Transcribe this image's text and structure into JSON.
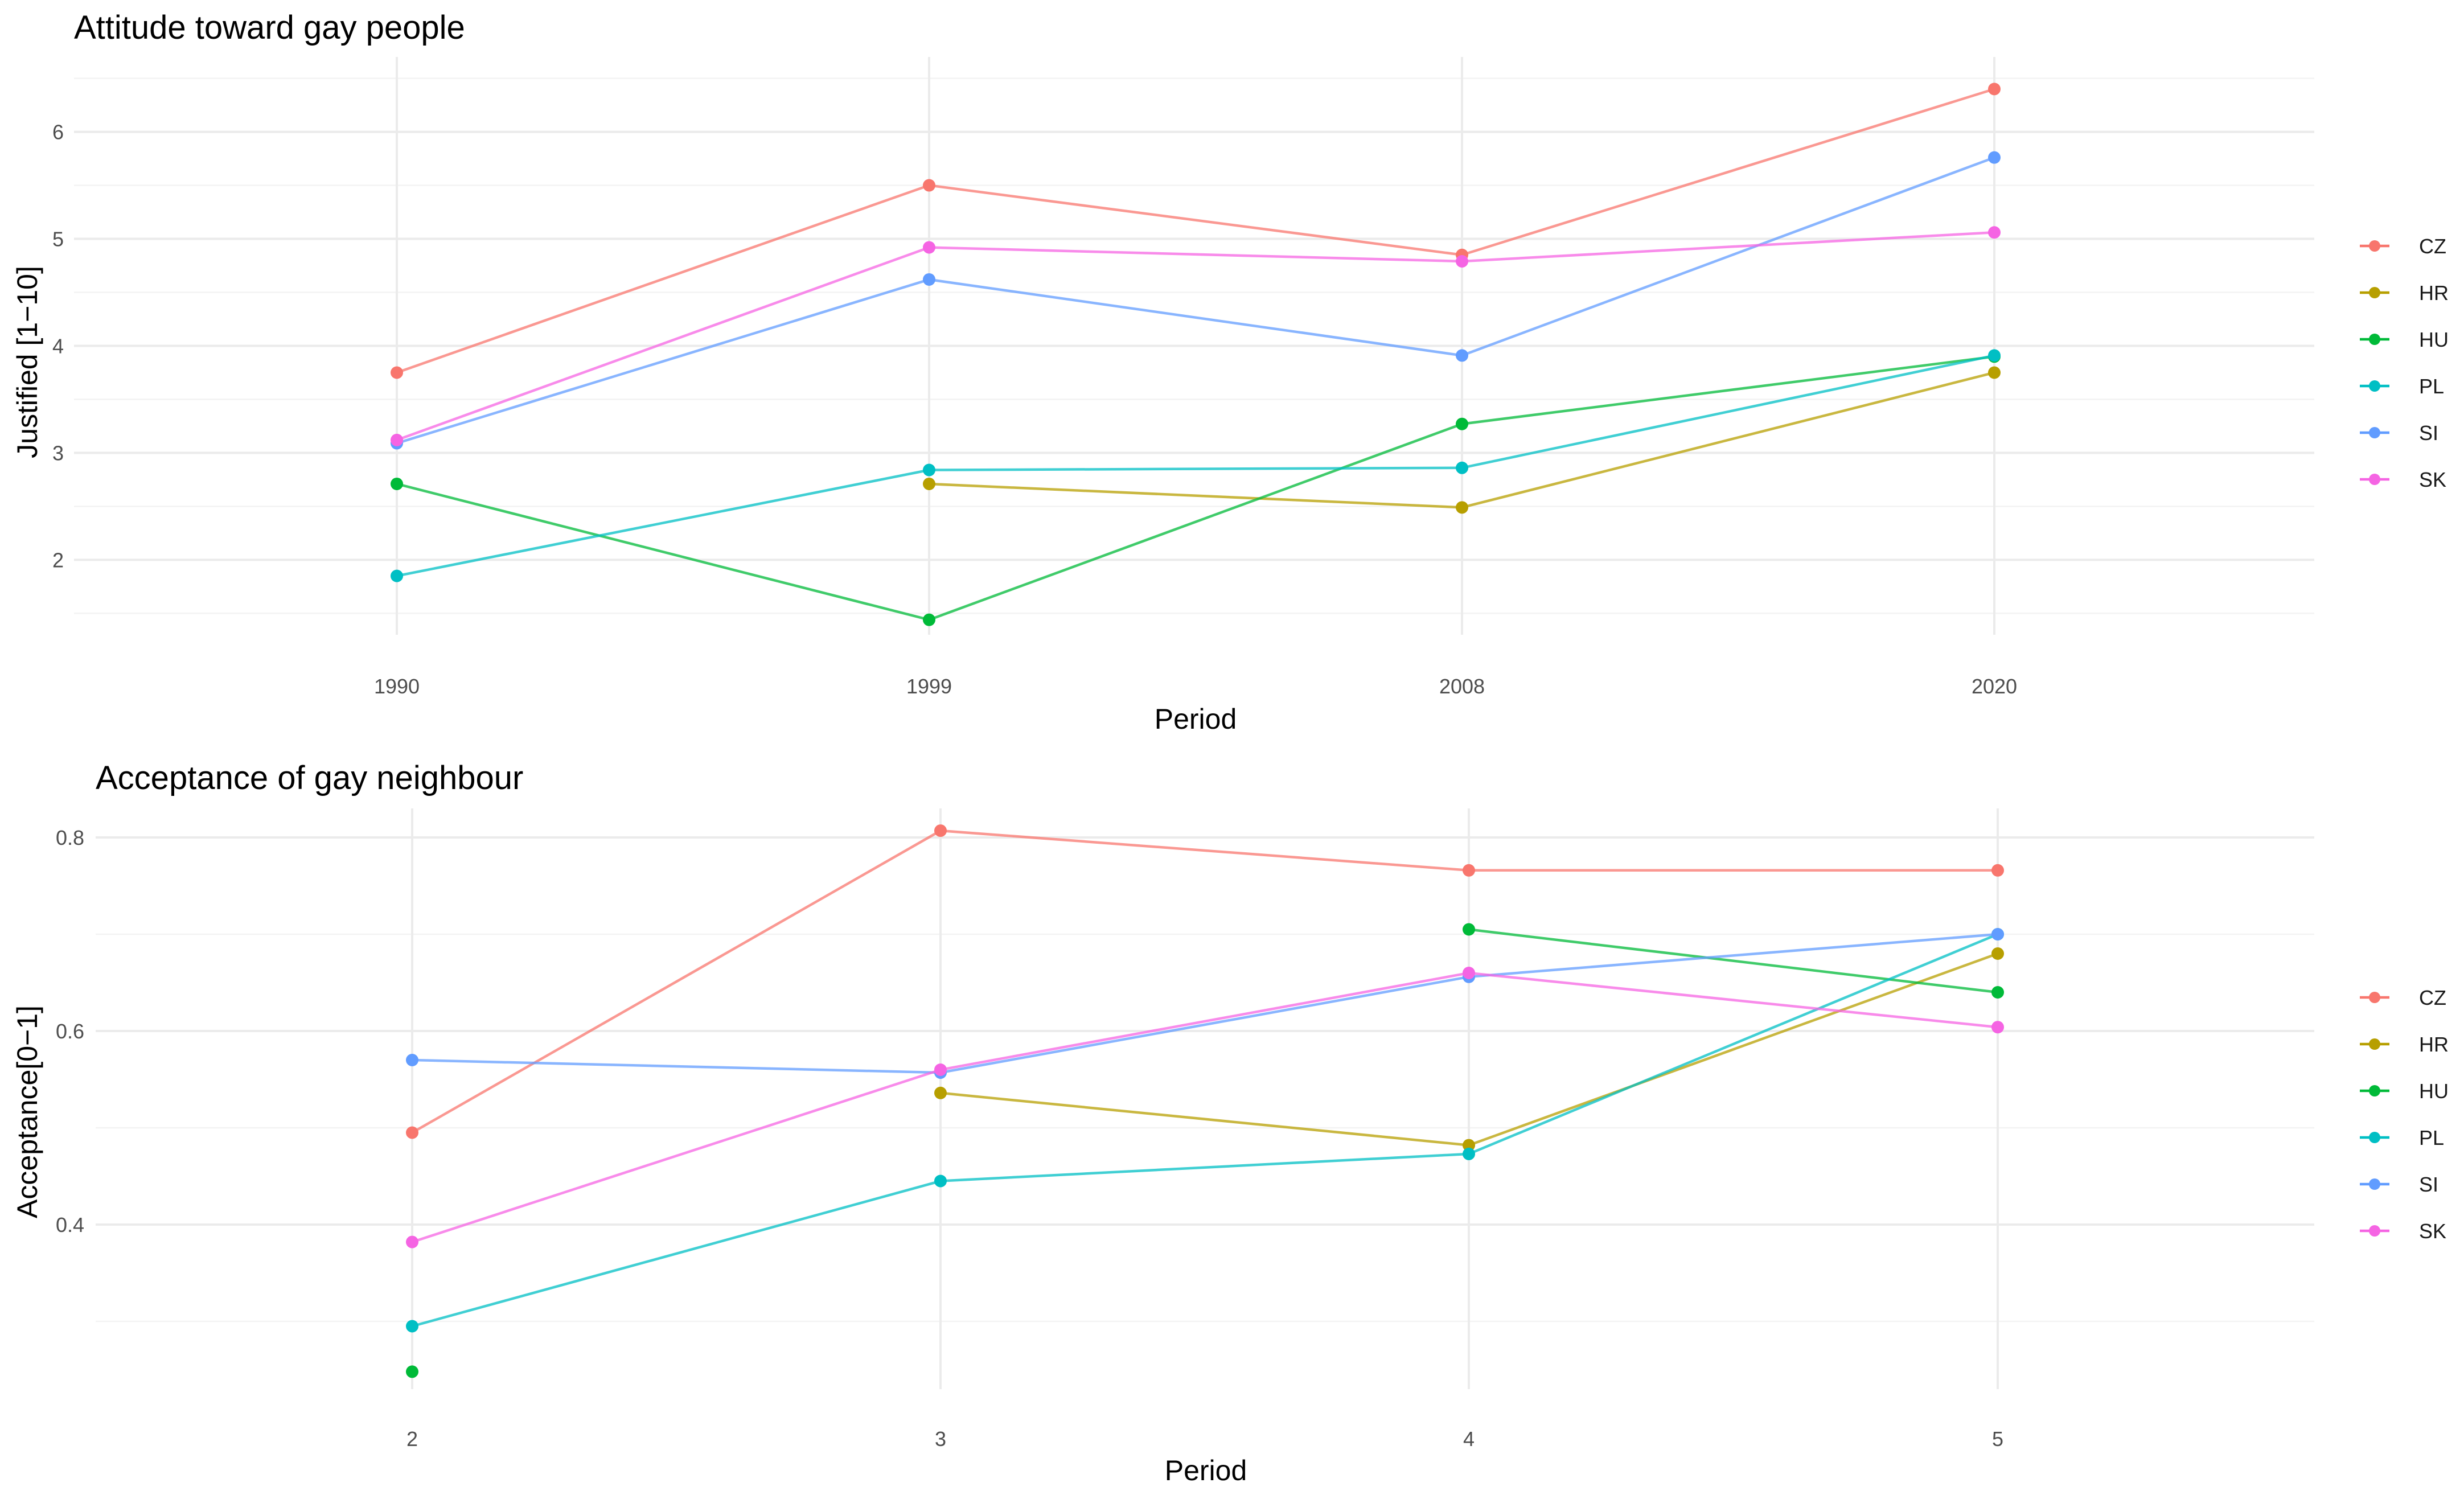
{
  "chart_data": [
    {
      "type": "line",
      "title": "Attitude toward gay people",
      "xlabel": "Period",
      "ylabel": "Justified [1−10]",
      "categories": [
        "1990",
        "1999",
        "2008",
        "2020"
      ],
      "yticks": [
        "2",
        "3",
        "4",
        "5",
        "6"
      ],
      "ylim": [
        1.3,
        6.7
      ],
      "legend_position": "right",
      "series": [
        {
          "name": "CZ",
          "color": "#F8766D",
          "values": [
            3.75,
            5.5,
            4.85,
            6.4
          ]
        },
        {
          "name": "HR",
          "color": "#B79F00",
          "values": [
            null,
            2.71,
            2.49,
            3.75
          ]
        },
        {
          "name": "HU",
          "color": "#00BA38",
          "values": [
            2.71,
            1.44,
            3.27,
            3.9
          ]
        },
        {
          "name": "PL",
          "color": "#00BFC4",
          "values": [
            1.85,
            2.84,
            2.86,
            3.91
          ]
        },
        {
          "name": "SI",
          "color": "#619CFF",
          "values": [
            3.09,
            4.62,
            3.91,
            5.76
          ]
        },
        {
          "name": "SK",
          "color": "#F564E3",
          "values": [
            3.12,
            4.92,
            4.79,
            5.06
          ]
        }
      ]
    },
    {
      "type": "line",
      "title": "Acceptance of gay neighbour",
      "xlabel": "Period",
      "ylabel": "Acceptance[0−1]",
      "categories": [
        "2",
        "3",
        "4",
        "5"
      ],
      "yticks": [
        "0.4",
        "0.6",
        "0.8"
      ],
      "ylim": [
        0.23,
        0.83
      ],
      "legend_position": "right",
      "series": [
        {
          "name": "CZ",
          "color": "#F8766D",
          "values": [
            0.495,
            0.807,
            0.766,
            0.766
          ]
        },
        {
          "name": "HR",
          "color": "#B79F00",
          "values": [
            null,
            0.536,
            0.482,
            0.68
          ]
        },
        {
          "name": "HU",
          "color": "#00BA38",
          "values": [
            0.248,
            null,
            0.705,
            0.64
          ]
        },
        {
          "name": "PL",
          "color": "#00BFC4",
          "values": [
            0.295,
            0.445,
            0.473,
            0.7
          ]
        },
        {
          "name": "SI",
          "color": "#619CFF",
          "values": [
            0.57,
            0.557,
            0.656,
            0.7
          ]
        },
        {
          "name": "SK",
          "color": "#F564E3",
          "values": [
            0.382,
            0.56,
            0.66,
            0.604
          ]
        }
      ]
    }
  ]
}
